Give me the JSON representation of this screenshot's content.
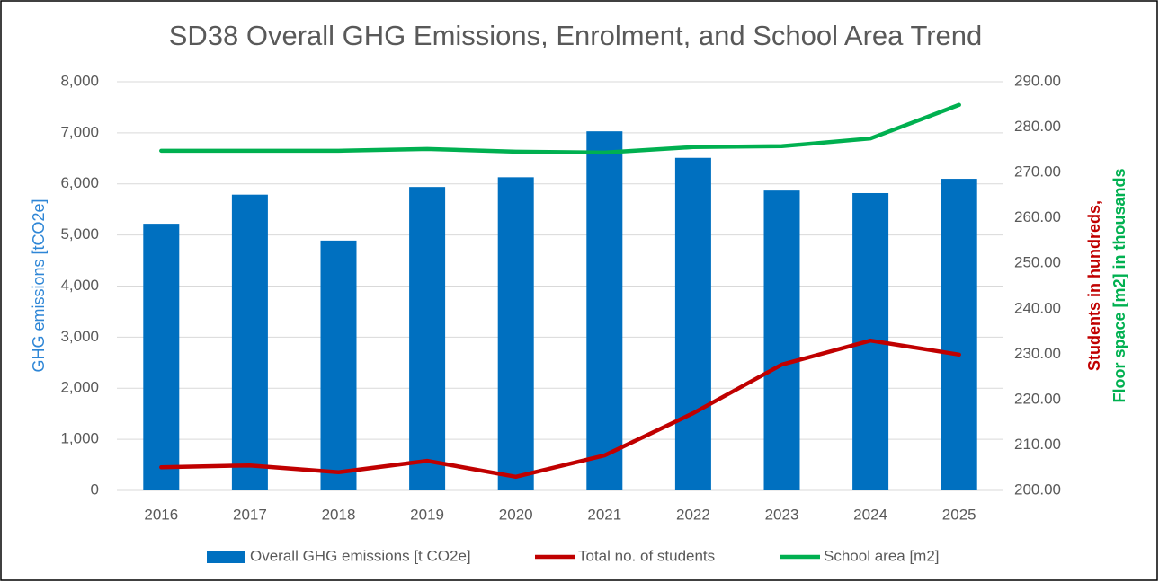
{
  "chart_data": {
    "type": "bar",
    "title": "SD38 Overall GHG Emissions, Enrolment, and School Area Trend",
    "categories": [
      "2016",
      "2017",
      "2018",
      "2019",
      "2020",
      "2021",
      "2022",
      "2023",
      "2024",
      "2025"
    ],
    "ylabel": "GHG emissions [tCO2e]",
    "y2label": [
      {
        "text": "Students in hundreds,",
        "color": "#c00000"
      },
      {
        "text": "Floor space [m2] in thousands",
        "color": "#00b050"
      }
    ],
    "ylim": [
      0,
      8000
    ],
    "yticks": [
      0,
      {
        "value": 1000,
        "label": "1,000"
      },
      {
        "value": 2000,
        "label": "2,000"
      },
      {
        "value": 3000,
        "label": "3,000"
      },
      {
        "value": 4000,
        "label": "4,000"
      },
      {
        "value": 5000,
        "label": "5,000"
      },
      {
        "value": 6000,
        "label": "6,000"
      },
      {
        "value": 7000,
        "label": "7,000"
      },
      {
        "value": 8000,
        "label": "8,000"
      }
    ],
    "y2lim": [
      200,
      290
    ],
    "y2ticks": [
      {
        "value": 200,
        "label": "200.00"
      },
      {
        "value": 210,
        "label": "210.00"
      },
      {
        "value": 220,
        "label": "220.00"
      },
      {
        "value": 230,
        "label": "230.00"
      },
      {
        "value": 240,
        "label": "240.00"
      },
      {
        "value": 250,
        "label": "250.00"
      },
      {
        "value": 260,
        "label": "260.00"
      },
      {
        "value": 270,
        "label": "270.00"
      },
      {
        "value": 280,
        "label": "280.00"
      },
      {
        "value": 290,
        "label": "290.00"
      }
    ],
    "grid": true,
    "legend": "bottom",
    "series": [
      {
        "name": "Overall GHG emissions [t CO2e]",
        "type": "bar",
        "color": "#0070c0",
        "values": [
          5220,
          5790,
          4890,
          5940,
          6130,
          7030,
          6510,
          5870,
          5820,
          6100
        ]
      },
      {
        "name": "Total no. of students",
        "type": "line",
        "axis": "y2",
        "color": "#c00000",
        "values": [
          205.1,
          205.5,
          204.0,
          206.5,
          203.0,
          207.7,
          217.0,
          227.7,
          233.0,
          229.9
        ]
      },
      {
        "name": "School area [m2]",
        "type": "line",
        "axis": "y2",
        "color": "#00b050",
        "values": [
          274.8,
          274.8,
          274.8,
          275.2,
          274.6,
          274.4,
          275.6,
          275.8,
          277.5,
          284.9
        ]
      }
    ]
  }
}
